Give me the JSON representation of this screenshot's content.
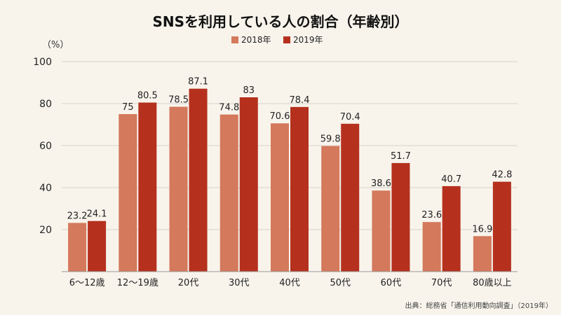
{
  "chart_data": {
    "type": "bar",
    "title": "SNSを利用している人の割合（年齢別）",
    "unit_label": "（%）",
    "categories": [
      "6～12歳",
      "12～19歳",
      "20代",
      "30代",
      "40代",
      "50代",
      "60代",
      "70代",
      "80歳以上"
    ],
    "series": [
      {
        "name": "2018年",
        "color": "#d4795b",
        "values": [
          23.2,
          75,
          78.5,
          74.8,
          70.6,
          59.8,
          38.6,
          23.6,
          16.9
        ]
      },
      {
        "name": "2019年",
        "color": "#b5311e",
        "values": [
          24.1,
          80.5,
          87.1,
          83,
          78.4,
          70.4,
          51.7,
          40.7,
          42.8
        ]
      }
    ],
    "ylim": [
      0,
      100
    ],
    "yticks": [
      20,
      40,
      60,
      80,
      100
    ],
    "grid": true,
    "legend_position": "top-center",
    "source": "出典：総務省「通信利用動向調査」（2019年）"
  }
}
